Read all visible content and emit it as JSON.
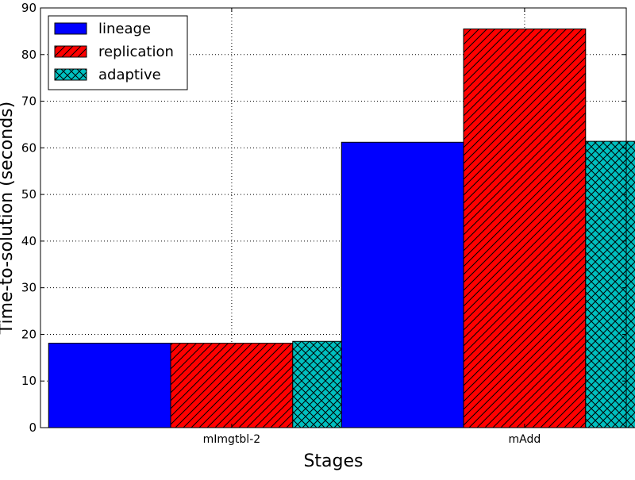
{
  "chart_data": {
    "type": "bar",
    "title": "",
    "xlabel": "Stages",
    "ylabel": "Time-to-solution (seconds)",
    "categories": [
      "mImgtbl-2",
      "mAdd"
    ],
    "series": [
      {
        "name": "lineage",
        "values": [
          18.1,
          61.2
        ],
        "color": "#0000ff",
        "hatch": "none"
      },
      {
        "name": "replication",
        "values": [
          18.1,
          85.5
        ],
        "color": "#ff0000",
        "hatch": "diagonal"
      },
      {
        "name": "adaptive",
        "values": [
          18.5,
          61.4
        ],
        "color": "#00bfbf",
        "hatch": "crosshatch"
      }
    ],
    "ylim": [
      0,
      90
    ],
    "yticks": [
      0,
      10,
      20,
      30,
      40,
      50,
      60,
      70,
      80,
      90
    ],
    "grid": true,
    "legend_position": "top-left"
  }
}
